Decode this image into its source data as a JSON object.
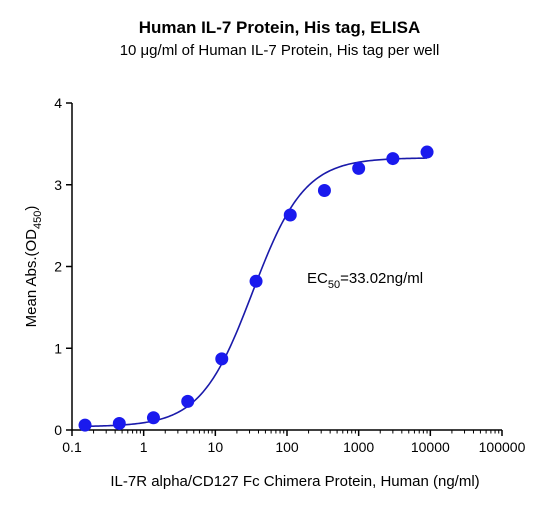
{
  "chart_data": {
    "type": "scatter",
    "title": "Human IL-7 Protein, His tag, ELISA",
    "subtitle": "10 μg/ml of Human IL-7 Protein, His tag per well",
    "xlabel": "IL-7R alpha/CD127 Fc Chimera Protein, Human (ng/ml)",
    "ylabel": {
      "main": "Mean Abs.(OD",
      "sub": "450",
      "end": ")"
    },
    "x_scale": "log",
    "xlim": [
      0.1,
      100000
    ],
    "ylim": [
      0,
      4
    ],
    "x_ticks": [
      0.1,
      1,
      10,
      100,
      1000,
      10000,
      100000
    ],
    "x_tick_labels": [
      "0.1",
      "1",
      "10",
      "100",
      "1000",
      "10000",
      "100000"
    ],
    "y_ticks": [
      0,
      1,
      2,
      3,
      4
    ],
    "y_tick_labels": [
      "0",
      "1",
      "2",
      "3",
      "4"
    ],
    "grid": false,
    "annotation": {
      "main": "EC",
      "sub": "50",
      "end": "=33.02ng/ml"
    },
    "point_color": "#1a1aee",
    "curve_color": "#1a1aaa",
    "series": [
      {
        "x": [
          0.152,
          0.457,
          1.37,
          4.12,
          12.3,
          37.0,
          111,
          333,
          1000,
          3000,
          9000
        ],
        "y": [
          0.06,
          0.08,
          0.15,
          0.35,
          0.87,
          1.82,
          2.63,
          2.93,
          3.2,
          3.32,
          3.4
        ]
      }
    ],
    "fit": {
      "model": "4PL",
      "bottom": 0.04,
      "top": 3.33,
      "ec50": 33.02,
      "hill": 1.2
    }
  }
}
